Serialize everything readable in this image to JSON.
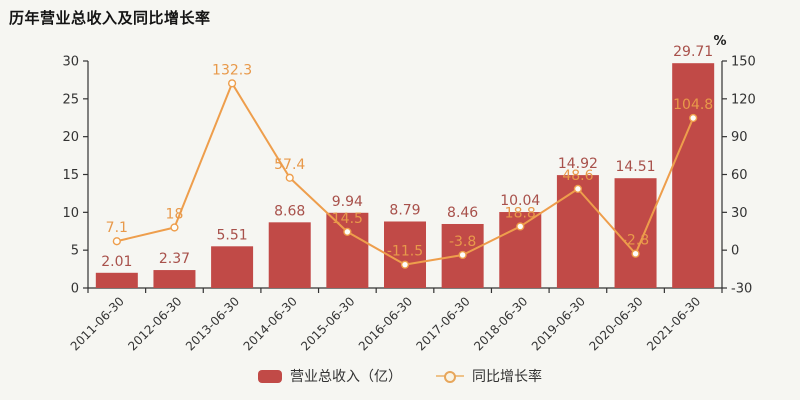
{
  "title": "历年营业总收入及同比增长率",
  "legend": {
    "items": [
      {
        "label": "营业总收入（亿）",
        "marker": "bar-swatch"
      },
      {
        "label": "同比增长率",
        "marker": "line-circle"
      }
    ]
  },
  "chart_data": {
    "type": "combo",
    "categories": [
      "2011-06-30",
      "2012-06-30",
      "2013-06-30",
      "2014-06-30",
      "2015-06-30",
      "2016-06-30",
      "2017-06-30",
      "2018-06-30",
      "2019-06-30",
      "2020-06-30",
      "2021-06-30"
    ],
    "series": [
      {
        "name": "营业总收入（亿）",
        "type": "bar",
        "axis": "left",
        "color": "#c14a47",
        "label_color": "#a8514b",
        "values": [
          2.01,
          2.37,
          5.51,
          8.68,
          9.94,
          8.79,
          8.46,
          10.04,
          14.92,
          14.51,
          29.71
        ],
        "labels": [
          "2.01",
          "2.37",
          "5.51",
          "8.68",
          "9.94",
          "8.79",
          "8.46",
          "10.04",
          "14.92",
          "14.51",
          "29.71"
        ]
      },
      {
        "name": "同比增长率",
        "type": "line",
        "axis": "right",
        "color": "#ee9e4c",
        "label_color": "#e8994a",
        "marker_fill": "#fdfdfa",
        "values": [
          7.1,
          18,
          132.3,
          57.4,
          14.5,
          -11.5,
          -3.8,
          18.8,
          48.6,
          -2.8,
          104.8
        ],
        "labels": [
          "7.1",
          "18",
          "132.3",
          "57.4",
          "14.5",
          "-11.5",
          "-3.8",
          "18.8",
          "48.6",
          "-2.8",
          "104.8"
        ]
      }
    ],
    "left_axis": {
      "min": 0,
      "max": 30,
      "ticks": [
        0,
        5,
        10,
        15,
        20,
        25,
        30
      ]
    },
    "right_axis": {
      "min": -30,
      "max": 150,
      "ticks": [
        -30,
        0,
        30,
        60,
        90,
        120,
        150
      ],
      "unit": "%"
    },
    "grid": false,
    "legend_position": "bottom",
    "x_label_rotation": -45
  },
  "colors": {
    "background": "#f6f6f2",
    "axis": "#333333",
    "bar": "#c14a47",
    "line": "#ee9e4c"
  }
}
